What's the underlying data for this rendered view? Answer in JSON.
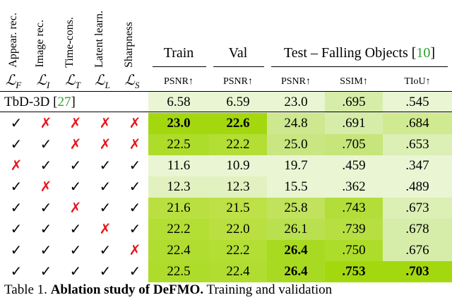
{
  "loss_headers": [
    {
      "label": "Appear. rec.",
      "symbol": "ℒ",
      "sub": "F"
    },
    {
      "label": "Image rec.",
      "symbol": "ℒ",
      "sub": "I"
    },
    {
      "label": "Time-cons.",
      "symbol": "ℒ",
      "sub": "T"
    },
    {
      "label": "Latent learn.",
      "symbol": "ℒ",
      "sub": "L"
    },
    {
      "label": "Sharpness",
      "symbol": "ℒ",
      "sub": "S"
    }
  ],
  "groups": {
    "train": "Train",
    "val": "Val",
    "test_prefix": "Test – Falling Objects [",
    "test_ref": "10",
    "test_suffix": "]"
  },
  "metrics": [
    "PSNR↑",
    "PSNR↑",
    "PSNR↑",
    "SSIM↑",
    "TIoU↑"
  ],
  "baseline": {
    "name": "TbD-3D [",
    "ref": "27",
    "suffix": "]"
  },
  "marks": {
    "check": "✓",
    "cross": "✗"
  },
  "rows": [
    {
      "losses": [
        null,
        null,
        null,
        null,
        null
      ],
      "values": [
        "6.58",
        "6.59",
        "23.0",
        ".695",
        ".545"
      ],
      "bold": [
        false,
        false,
        false,
        false,
        false
      ]
    },
    {
      "losses": [
        "check",
        "cross",
        "cross",
        "cross",
        "cross"
      ],
      "values": [
        "23.0",
        "22.6",
        "24.8",
        ".691",
        ".684"
      ],
      "bold": [
        true,
        true,
        false,
        false,
        false
      ]
    },
    {
      "losses": [
        "check",
        "check",
        "cross",
        "cross",
        "cross"
      ],
      "values": [
        "22.5",
        "22.2",
        "25.0",
        ".705",
        ".653"
      ],
      "bold": [
        false,
        false,
        false,
        false,
        false
      ]
    },
    {
      "losses": [
        "cross",
        "check",
        "check",
        "check",
        "check"
      ],
      "values": [
        "11.6",
        "10.9",
        "19.7",
        ".459",
        ".347"
      ],
      "bold": [
        false,
        false,
        false,
        false,
        false
      ]
    },
    {
      "losses": [
        "check",
        "cross",
        "check",
        "check",
        "check"
      ],
      "values": [
        "12.3",
        "12.3",
        "15.5",
        ".362",
        ".489"
      ],
      "bold": [
        false,
        false,
        false,
        false,
        false
      ]
    },
    {
      "losses": [
        "check",
        "check",
        "cross",
        "check",
        "check"
      ],
      "values": [
        "21.6",
        "21.5",
        "25.8",
        ".743",
        ".673"
      ],
      "bold": [
        false,
        false,
        false,
        false,
        false
      ]
    },
    {
      "losses": [
        "check",
        "check",
        "check",
        "cross",
        "check"
      ],
      "values": [
        "22.2",
        "22.0",
        "26.1",
        ".739",
        ".678"
      ],
      "bold": [
        false,
        false,
        false,
        false,
        false
      ]
    },
    {
      "losses": [
        "check",
        "check",
        "check",
        "check",
        "cross"
      ],
      "values": [
        "22.4",
        "22.2",
        "26.4",
        ".750",
        ".676"
      ],
      "bold": [
        false,
        false,
        true,
        false,
        false
      ]
    },
    {
      "losses": [
        "check",
        "check",
        "check",
        "check",
        "check"
      ],
      "values": [
        "22.5",
        "22.4",
        "26.4",
        ".753",
        ".703"
      ],
      "bold": [
        false,
        false,
        true,
        true,
        true
      ]
    }
  ],
  "cell_colors": [
    [
      "#eaf5d4",
      "#eaf5d4",
      "#eaf5d4",
      "#d6edaa",
      "#eaf5d4"
    ],
    [
      "#a3d80f",
      "#a3d80f",
      "#cde88e",
      "#d6edaa",
      "#d0ea91"
    ],
    [
      "#aedc2a",
      "#b3de34",
      "#c9e682",
      "#c6e57b",
      "#dcefb5"
    ],
    [
      "#eaf5d4",
      "#eaf5d4",
      "#eaf5d4",
      "#eaf5d4",
      "#eaf5d4"
    ],
    [
      "#e1f2c0",
      "#e1f2c0",
      "#eaf5d4",
      "#eaf5d4",
      "#eaf5d4"
    ],
    [
      "#b9e040",
      "#bde147",
      "#c0e25c",
      "#b3de3a",
      "#dcefb5"
    ],
    [
      "#b3de34",
      "#b9e040",
      "#b9e04f",
      "#b7df42",
      "#d6edaa"
    ],
    [
      "#b0dd2f",
      "#b3de34",
      "#a9da22",
      "#aedc2a",
      "#d6edaa"
    ],
    [
      "#aedc2a",
      "#b0dd2f",
      "#a9da22",
      "#a3d80f",
      "#a3d80f"
    ]
  ],
  "caption": {
    "prefix": "Table 1. ",
    "bold": "Ablation study of DeFMO.",
    "rest": " Training and validation"
  }
}
